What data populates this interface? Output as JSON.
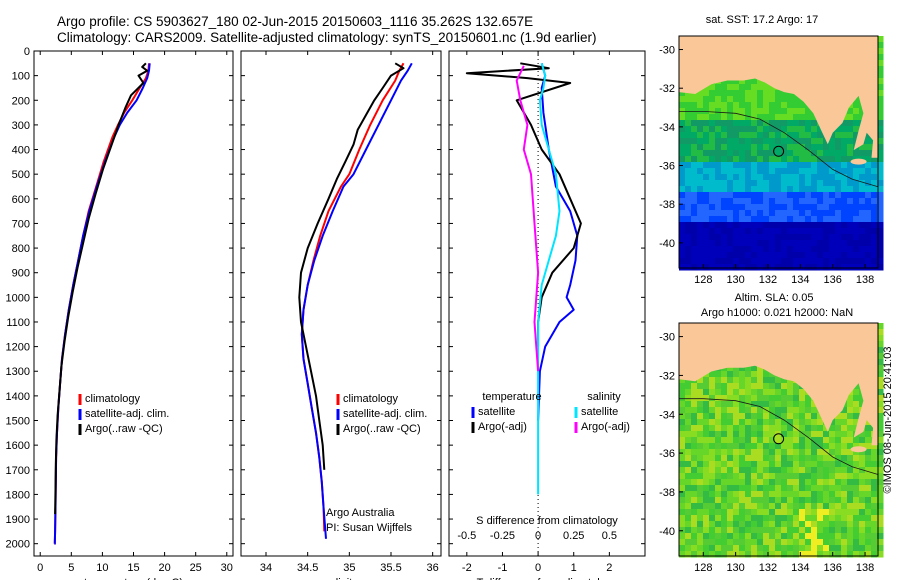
{
  "header": {
    "line1": "Argo profile: CS 5903627_180 02-Jun-2015 20150603_1116 35.262S 132.657E",
    "line2": "Climatology: CARS2009. Satellite-adjusted climatology: synTS_20150601.nc (1.9d earlier)"
  },
  "colors": {
    "climatology": "#ff0000",
    "satellite": "#0000ff",
    "argo": "#000000",
    "salinity_sat": "#00e5ff",
    "salinity_argo": "#ff00ff",
    "land": "#fac898",
    "ocean_deep": "#00008b"
  },
  "chart_data": [
    {
      "id": "temperature",
      "type": "line",
      "xlabel": "temperature (deg C)",
      "xlim": [
        -1,
        31
      ],
      "xticks": [
        0,
        5,
        10,
        15,
        20,
        25,
        30
      ],
      "xtick_labels": [
        "0",
        "5",
        "10",
        "15",
        "20",
        "25",
        "30"
      ],
      "ylim": [
        0,
        2050
      ],
      "yticks": [
        0,
        100,
        200,
        300,
        400,
        500,
        600,
        700,
        800,
        900,
        1000,
        1100,
        1200,
        1300,
        1400,
        1500,
        1600,
        1700,
        1800,
        1900,
        2000
      ],
      "ytick_labels": [
        "0",
        "100",
        "200",
        "300",
        "400",
        "500",
        "600",
        "700",
        "800",
        "900",
        "1000",
        "1100",
        "1200",
        "1300",
        "1400",
        "1500",
        "1600",
        "1700",
        "1800",
        "1900",
        "2000"
      ],
      "y_reversed": true,
      "legend": [
        "climatology",
        "satellite-adj. clim.",
        "Argo(..raw -QC)"
      ],
      "series": [
        {
          "name": "climatology",
          "color": "#ff0000",
          "x": [
            17.5,
            17.4,
            17.0,
            16.0,
            14.8,
            13.5,
            12.5,
            11.6,
            10.2,
            9.0,
            7.8,
            6.9,
            6.1,
            5.3,
            4.6,
            4.0,
            3.5,
            3.2,
            2.9,
            2.7,
            2.55,
            2.5,
            2.45,
            2.4,
            2.35,
            2.3
          ],
          "y": [
            50,
            80,
            110,
            150,
            200,
            250,
            300,
            350,
            450,
            550,
            650,
            750,
            850,
            950,
            1050,
            1150,
            1250,
            1350,
            1450,
            1550,
            1650,
            1750,
            1850,
            1950,
            2000,
            2000
          ]
        },
        {
          "name": "satellite",
          "color": "#0000ff",
          "x": [
            17.6,
            17.5,
            17.2,
            16.5,
            15.5,
            14.0,
            12.8,
            11.9,
            10.4,
            9.1,
            7.9,
            6.9,
            6.1,
            5.3,
            4.6,
            4.0,
            3.5,
            3.2,
            2.9,
            2.7,
            2.55,
            2.5,
            2.45,
            2.4,
            2.35,
            2.3
          ],
          "y": [
            50,
            80,
            110,
            150,
            200,
            250,
            300,
            350,
            450,
            550,
            650,
            750,
            850,
            950,
            1050,
            1150,
            1250,
            1350,
            1450,
            1550,
            1650,
            1750,
            1850,
            1950,
            2000,
            2000
          ]
        },
        {
          "name": "argo",
          "color": "#000000",
          "x": [
            17.0,
            16.4,
            17.2,
            15.8,
            16.6,
            14.6,
            13.7,
            12.6,
            11.5,
            10.1,
            8.9,
            7.8,
            6.9,
            6.0,
            5.2,
            4.5,
            3.9,
            3.4,
            3.1,
            2.8,
            2.6,
            2.5,
            2.45,
            2.4
          ],
          "y": [
            50,
            65,
            80,
            100,
            130,
            180,
            230,
            300,
            380,
            480,
            580,
            680,
            780,
            880,
            980,
            1080,
            1180,
            1280,
            1380,
            1480,
            1580,
            1680,
            1780,
            1880
          ]
        }
      ]
    },
    {
      "id": "salinity",
      "type": "line",
      "xlabel": "salinity",
      "xlim": [
        33.7,
        36.1
      ],
      "xticks": [
        34,
        34.5,
        35,
        35.5,
        36
      ],
      "xtick_labels": [
        "34",
        "34.5",
        "35",
        "35.5",
        "36"
      ],
      "ylim": [
        0,
        2050
      ],
      "y_reversed": true,
      "legend": [
        "climatology",
        "satellite-adj. clim.",
        "Argo(..raw -QC)"
      ],
      "annotation": [
        "Argo Australia",
        "PI: Susan Wijffels"
      ],
      "series": [
        {
          "name": "climatology",
          "color": "#ff0000",
          "x": [
            35.65,
            35.6,
            35.55,
            35.4,
            35.25,
            35.12,
            35.0,
            34.9,
            34.75,
            34.65,
            34.57,
            34.5,
            34.45,
            34.43,
            34.45,
            34.5,
            34.55,
            34.6,
            34.64,
            34.67,
            34.69,
            34.7
          ],
          "y": [
            50,
            80,
            120,
            200,
            300,
            400,
            500,
            550,
            650,
            750,
            850,
            950,
            1050,
            1150,
            1250,
            1350,
            1450,
            1550,
            1650,
            1750,
            1850,
            1950
          ]
        },
        {
          "name": "satellite",
          "color": "#0000ff",
          "x": [
            35.75,
            35.7,
            35.62,
            35.5,
            35.35,
            35.2,
            35.05,
            34.93,
            34.8,
            34.68,
            34.58,
            34.5,
            34.45,
            34.43,
            34.45,
            34.5,
            34.55,
            34.6,
            34.64,
            34.67,
            34.69,
            34.72
          ],
          "y": [
            50,
            80,
            120,
            200,
            300,
            400,
            500,
            550,
            650,
            750,
            850,
            950,
            1050,
            1150,
            1250,
            1350,
            1450,
            1550,
            1650,
            1750,
            1850,
            1980
          ]
        },
        {
          "name": "argo",
          "color": "#000000",
          "x": [
            35.55,
            35.65,
            35.5,
            35.4,
            35.3,
            35.2,
            35.1,
            35.05,
            34.95,
            34.85,
            34.75,
            34.62,
            34.5,
            34.42,
            34.4,
            34.42,
            34.48,
            34.54,
            34.6,
            34.64,
            34.68,
            34.7
          ],
          "y": [
            50,
            70,
            100,
            150,
            200,
            260,
            320,
            380,
            450,
            520,
            600,
            700,
            800,
            900,
            1000,
            1100,
            1200,
            1300,
            1400,
            1500,
            1600,
            1700
          ]
        }
      ]
    },
    {
      "id": "difference",
      "type": "line",
      "xlabel": "T difference from climatology",
      "x2label": "S difference from climatology",
      "xlim": [
        -2.5,
        3.0
      ],
      "xticks": [
        -2,
        -1,
        0,
        1,
        2
      ],
      "xtick_labels": [
        "-2",
        "-1",
        "0",
        "1",
        "2"
      ],
      "x2ticks": [
        -0.5,
        -0.25,
        0,
        0.25,
        0.5
      ],
      "x2tick_labels": [
        "-0.5",
        "-0.25",
        "0",
        "0.25",
        "0.5"
      ],
      "ylim": [
        0,
        2050
      ],
      "y_reversed": true,
      "legend_titles": [
        "temperature",
        "salinity"
      ],
      "legend": [
        "satellite",
        "Argo(-adj)",
        "satellite",
        "Argo(-adj)"
      ],
      "series": [
        {
          "name": "T satellite",
          "color": "#0000ff",
          "x": [
            0.1,
            0.2,
            0.1,
            0.15,
            0.3,
            0.5,
            0.9,
            1.1,
            1.05,
            0.9,
            0.8,
            1.0,
            0.6,
            0.2,
            0.05,
            0.0
          ],
          "y": [
            50,
            100,
            150,
            250,
            400,
            550,
            650,
            750,
            850,
            950,
            1000,
            1050,
            1100,
            1200,
            1300,
            1500
          ]
        },
        {
          "name": "T argo",
          "color": "#000000",
          "x": [
            -0.5,
            0.3,
            -2.0,
            -0.3,
            0.9,
            -0.6,
            -0.2,
            0.1,
            0.6,
            0.9,
            1.2,
            1.0,
            0.4,
            0.1,
            0.0,
            0.0
          ],
          "y": [
            50,
            70,
            90,
            110,
            130,
            200,
            300,
            400,
            500,
            600,
            700,
            800,
            900,
            1000,
            1100,
            1200
          ]
        },
        {
          "name": "S satellite",
          "color": "#00e5ff",
          "x": [
            0.1,
            0.2,
            0.15,
            0.05,
            0.1,
            0.3,
            0.5,
            0.6,
            0.5,
            0.3,
            0.1,
            0.0,
            0.0,
            0.0
          ],
          "y": [
            50,
            100,
            150,
            200,
            300,
            400,
            500,
            650,
            750,
            850,
            950,
            1100,
            1400,
            1800
          ]
        },
        {
          "name": "S argo",
          "color": "#ff00ff",
          "x": [
            -0.4,
            -0.6,
            -0.5,
            -0.3,
            -0.4,
            -0.2,
            -0.1,
            0.0,
            -0.1,
            0.0
          ],
          "y": [
            60,
            120,
            200,
            300,
            400,
            500,
            700,
            900,
            1100,
            1300
          ]
        }
      ]
    },
    {
      "id": "map_sst",
      "type": "heatmap",
      "title": "sat. SST: 17.2  Argo: 17",
      "xlim": [
        126.5,
        138.8
      ],
      "xticks": [
        128,
        130,
        132,
        134,
        136,
        138
      ],
      "xtick_labels": [
        "128",
        "130",
        "132",
        "134",
        "136",
        "138"
      ],
      "ylim": [
        -41.3,
        -29.3
      ],
      "yticks": [
        -30,
        -32,
        -34,
        -36,
        -38,
        -40
      ],
      "ytick_labels": [
        "-30",
        "-32",
        "-34",
        "-36",
        "-38",
        "-40"
      ],
      "float_position": {
        "lon": 132.657,
        "lat": -35.262
      }
    },
    {
      "id": "map_sla",
      "type": "heatmap",
      "title": "Altim. SLA: 0.05",
      "subtitle": "Argo h1000: 0.021  h2000: NaN",
      "xlim": [
        126.5,
        138.8
      ],
      "xticks": [
        128,
        130,
        132,
        134,
        136,
        138
      ],
      "xtick_labels": [
        "128",
        "130",
        "132",
        "134",
        "136",
        "138"
      ],
      "ylim": [
        -41.3,
        -29.3
      ],
      "yticks": [
        -30,
        -32,
        -34,
        -36,
        -38,
        -40
      ],
      "ytick_labels": [
        "-30",
        "-32",
        "-34",
        "-36",
        "-38",
        "-40"
      ],
      "float_position": {
        "lon": 132.657,
        "lat": -35.262
      }
    }
  ],
  "credit": "©IMOS 08-Jun-2015 20:41:03"
}
